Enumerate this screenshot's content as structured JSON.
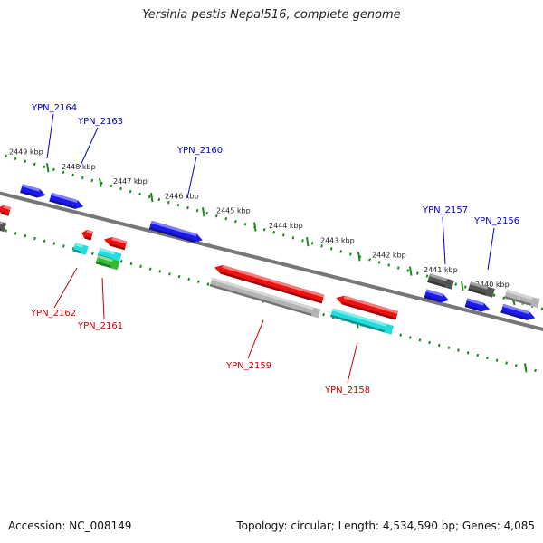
{
  "title": "Yersinia pestis Nepal516, complete genome",
  "footer": {
    "accession": "Accession: NC_008149",
    "summary": "Topology: circular; Length: 4,534,590 bp; Genes: 4,085"
  },
  "colors": {
    "forward_gene": "#1a1aee",
    "reverse_gene": "#ee1111",
    "pseudo_dark": "#555555",
    "pseudo_light": "#b4b4b4",
    "rna_cyan": "#22dddd",
    "rna_green": "#33bb33",
    "backbone": "#777777",
    "ruler": "#1a8a1a",
    "label_forward": "#0000cc",
    "label_reverse": "#cc0000"
  },
  "ruler_labels": [
    "2449 kbp",
    "2448 kbp",
    "2447 kbp",
    "2446 kbp",
    "2445 kbp",
    "2444 kbp",
    "2443 kbp",
    "2442 kbp",
    "2441 kbp",
    "2440 kbp"
  ],
  "forward_genes": [
    "YPN_2164",
    "YPN_2163",
    "YPN_2160",
    "YPN_2157",
    "YPN_2156"
  ],
  "reverse_genes": [
    "YPN_2162",
    "YPN_2161",
    "YPN_2159",
    "YPN_2158"
  ]
}
